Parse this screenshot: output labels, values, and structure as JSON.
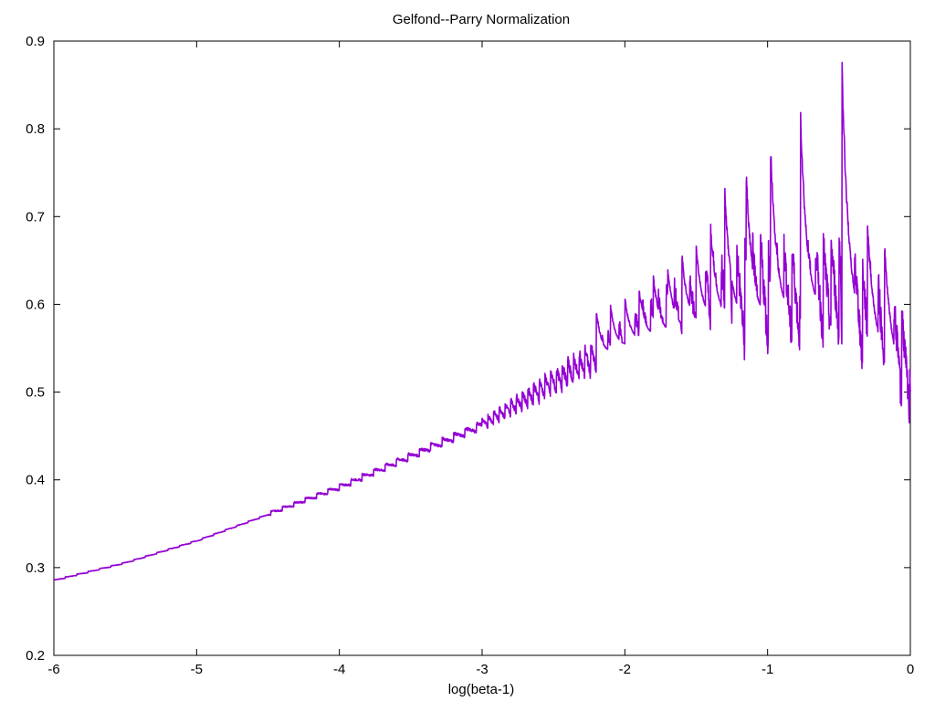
{
  "chart_data": {
    "type": "line",
    "title": "Gelfond--Parry Normalization",
    "xlabel": "log(beta-1)",
    "ylabel": "",
    "xlim": [
      -6,
      0
    ],
    "ylim": [
      0.2,
      0.9
    ],
    "xticks": [
      -6,
      -5,
      -4,
      -3,
      -2,
      -1,
      0
    ],
    "yticks": [
      0.2,
      0.3,
      0.4,
      0.5,
      0.6,
      0.7,
      0.8,
      0.9
    ],
    "xtick_labels": [
      "-6",
      "-5",
      "-4",
      "-3",
      "-2",
      "-1",
      "0"
    ],
    "ytick_labels": [
      "0.2",
      "0.3",
      "0.4",
      "0.5",
      "0.6",
      "0.7",
      "0.8",
      "0.9"
    ],
    "grid": false,
    "legend": "none",
    "series": [
      {
        "color": "#9400d3",
        "baseline_trend": {
          "x": [
            -6.0,
            -5.5,
            -5.0,
            -4.5,
            -4.0,
            -3.5,
            -3.0,
            -2.5,
            -2.0,
            -1.5,
            -1.0,
            -0.5,
            0.0
          ],
          "y": [
            0.285,
            0.305,
            0.33,
            0.36,
            0.39,
            0.425,
            0.46,
            0.505,
            0.55,
            0.575,
            0.58,
            0.59,
            0.5
          ]
        },
        "peaks": {
          "x": [
            -2.2,
            -2.1,
            -2.0,
            -1.9,
            -1.8,
            -1.7,
            -1.6,
            -1.5,
            -1.4,
            -1.3,
            -1.15,
            -0.98,
            -0.77,
            -0.48,
            -0.3,
            -0.18
          ],
          "y": [
            0.595,
            0.6,
            0.61,
            0.62,
            0.635,
            0.645,
            0.66,
            0.67,
            0.695,
            0.735,
            0.757,
            0.79,
            0.835,
            0.892,
            0.695,
            0.672
          ]
        },
        "troughs": {
          "x": [
            -1.6,
            -1.4,
            -1.25,
            -1.0,
            -0.77,
            -0.48,
            0.0
          ],
          "y": [
            0.565,
            0.57,
            0.575,
            0.578,
            0.578,
            0.555,
            0.5
          ]
        }
      }
    ]
  }
}
